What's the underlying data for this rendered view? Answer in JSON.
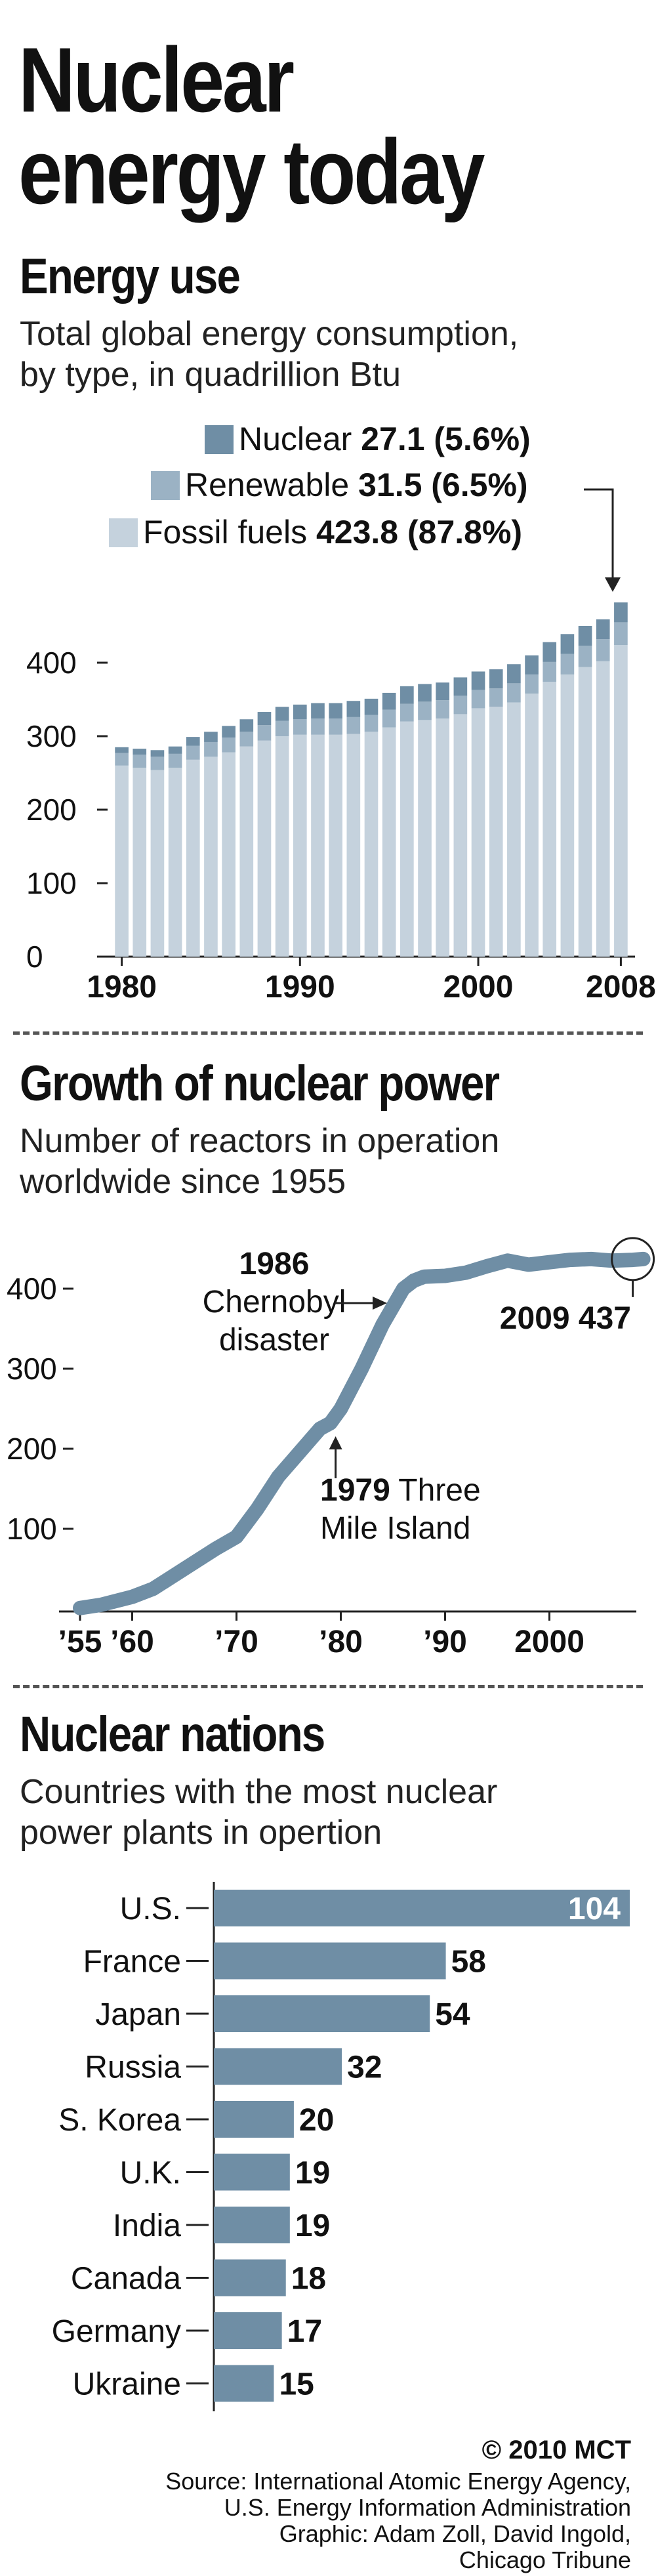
{
  "title": "Nuclear energy today",
  "title_line1": "Nuclear",
  "title_line2": "energy today",
  "section1": {
    "heading": "Energy use",
    "subtitle_line1": "Total global energy consumption,",
    "subtitle_line2": "by type, in quadrillion Btu",
    "legend": [
      {
        "name": "Nuclear",
        "value": "27.1 (5.6%)",
        "color": "#6f8ea5"
      },
      {
        "name": "Renewable",
        "value": "31.5 (6.5%)",
        "color": "#9bb2c4"
      },
      {
        "name": "Fossil fuels",
        "value": "423.8 (87.8%)",
        "color": "#c5d2dd"
      }
    ],
    "y_ticks": [
      "400",
      "300",
      "200",
      "100",
      "0"
    ],
    "x_ticks": [
      "1980",
      "1990",
      "2000",
      "2008"
    ]
  },
  "section2": {
    "heading": "Growth of nuclear power",
    "subtitle_line1": "Number of reactors in operation",
    "subtitle_line2": "worldwide since 1955",
    "y_ticks": [
      "400",
      "300",
      "200",
      "100"
    ],
    "x_ticks": [
      "’55",
      "’60",
      "’70",
      "’80",
      "’90",
      "2000"
    ],
    "annotation_1986_year": "1986",
    "annotation_1986_line1": "Chernobyl",
    "annotation_1986_line2": "disaster",
    "annotation_2009": "2009 437",
    "annotation_1979_line1": "1979 Three",
    "annotation_1979_line2": "Mile Island"
  },
  "section3": {
    "heading": "Nuclear nations",
    "subtitle_line1": "Countries with the most nuclear",
    "subtitle_line2": "power plants in opertion"
  },
  "credits": {
    "copyright": "© 2010 MCT",
    "line1": "Source: International Atomic Energy Agency,",
    "line2": "U.S. Energy Information Administration",
    "line3": "Graphic: Adam Zoll, David Ingold,",
    "line4": "Chicago Tribune"
  },
  "chart_data": [
    {
      "type": "bar",
      "stacked": true,
      "title": "Energy use",
      "x": [
        1980,
        1981,
        1982,
        1983,
        1984,
        1985,
        1986,
        1987,
        1988,
        1989,
        1990,
        1991,
        1992,
        1993,
        1994,
        1995,
        1996,
        1997,
        1998,
        1999,
        2000,
        2001,
        2002,
        2003,
        2004,
        2005,
        2006,
        2007,
        2008
      ],
      "series": [
        {
          "name": "Fossil fuels",
          "values": [
            260,
            257,
            254,
            257,
            268,
            272,
            278,
            286,
            294,
            300,
            302,
            302,
            302,
            303,
            306,
            312,
            320,
            322,
            324,
            330,
            338,
            340,
            346,
            358,
            374,
            384,
            394,
            402,
            424
          ]
        },
        {
          "name": "Renewable",
          "values": [
            17,
            18,
            18,
            19,
            19,
            20,
            20,
            20,
            21,
            21,
            21,
            22,
            22,
            23,
            23,
            24,
            24,
            25,
            25,
            25,
            25,
            25,
            26,
            26,
            27,
            28,
            29,
            30,
            31
          ]
        },
        {
          "name": "Nuclear",
          "values": [
            8,
            8,
            9,
            10,
            12,
            14,
            16,
            17,
            18,
            19,
            20,
            21,
            21,
            22,
            22,
            23,
            24,
            24,
            24,
            25,
            25,
            26,
            26,
            26,
            27,
            27,
            27,
            27,
            27
          ]
        }
      ],
      "ylim": [
        0,
        500
      ],
      "grid": false
    },
    {
      "type": "line",
      "title": "Growth of nuclear power",
      "x": [
        1955,
        1957,
        1960,
        1962,
        1965,
        1968,
        1970,
        1972,
        1974,
        1976,
        1978,
        1979,
        1980,
        1982,
        1984,
        1986,
        1987,
        1988,
        1990,
        1992,
        1994,
        1996,
        1998,
        2000,
        2002,
        2004,
        2006,
        2008,
        2009
      ],
      "series": [
        {
          "name": "Reactors",
          "values": [
            1,
            5,
            15,
            25,
            50,
            75,
            90,
            125,
            165,
            195,
            225,
            232,
            250,
            300,
            355,
            400,
            410,
            415,
            416,
            420,
            428,
            435,
            430,
            433,
            436,
            437,
            435,
            436,
            437
          ]
        }
      ],
      "ylim": [
        0,
        450
      ],
      "xlim": [
        1955,
        2010
      ]
    },
    {
      "type": "bar",
      "orientation": "horizontal",
      "title": "Nuclear nations",
      "categories": [
        "U.S.",
        "France",
        "Japan",
        "Russia",
        "S. Korea",
        "U.K.",
        "India",
        "Canada",
        "Germany",
        "Ukraine"
      ],
      "values": [
        104,
        58,
        54,
        32,
        20,
        19,
        19,
        18,
        17,
        15
      ],
      "color": "#6f8ea5"
    }
  ]
}
